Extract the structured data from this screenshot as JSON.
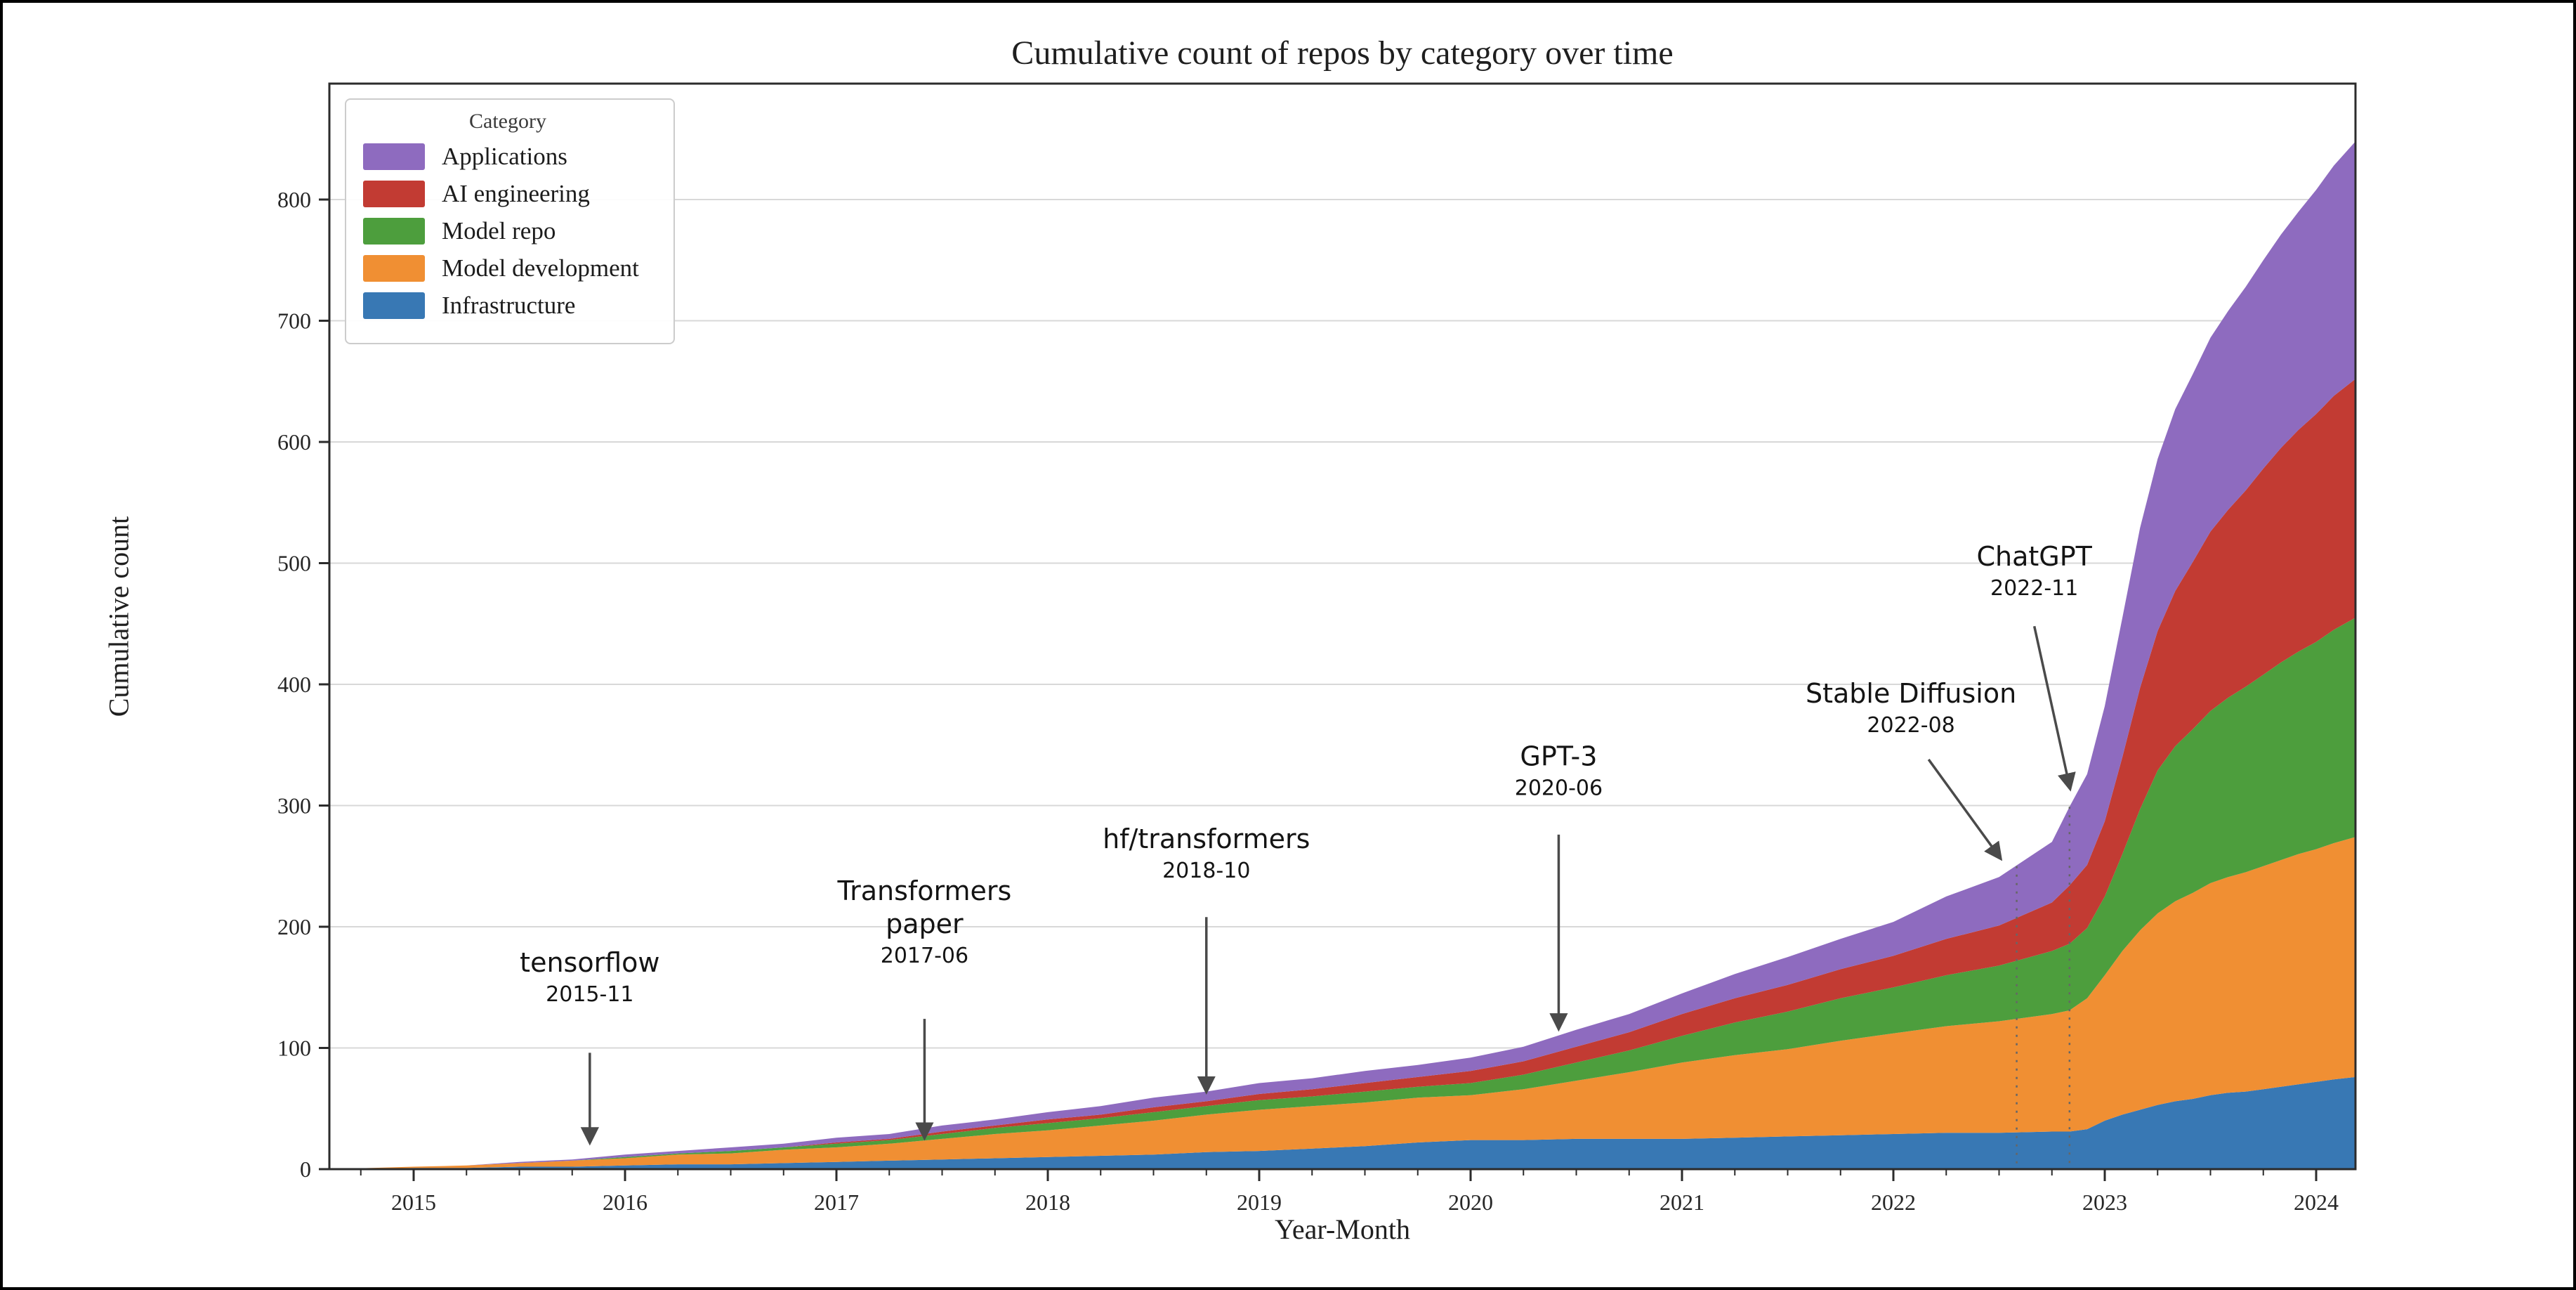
{
  "page": {
    "background": "#ffffff",
    "border_color": "#000000"
  },
  "chart_data": {
    "type": "area",
    "stacked": true,
    "title": "Cumulative count of repos by category over time",
    "xlabel": "Year-Month",
    "ylabel": "Cumulative count",
    "legend_title": "Category",
    "legend_position": "upper left",
    "grid": "horizontal",
    "ylim": [
      0,
      895
    ],
    "yticks": [
      0,
      100,
      200,
      300,
      400,
      500,
      600,
      700,
      800
    ],
    "xticks": [
      2015,
      2016,
      2017,
      2018,
      2019,
      2020,
      2021,
      2022,
      2023,
      2024
    ],
    "x": [
      "2014-08",
      "2015-01",
      "2015-04",
      "2015-07",
      "2015-10",
      "2016-01",
      "2016-04",
      "2016-07",
      "2016-10",
      "2017-01",
      "2017-04",
      "2017-07",
      "2017-10",
      "2018-01",
      "2018-04",
      "2018-07",
      "2018-10",
      "2019-01",
      "2019-04",
      "2019-07",
      "2019-10",
      "2020-01",
      "2020-04",
      "2020-07",
      "2020-10",
      "2021-01",
      "2021-04",
      "2021-07",
      "2021-10",
      "2022-01",
      "2022-04",
      "2022-07",
      "2022-10",
      "2022-11",
      "2022-12",
      "2023-01",
      "2023-02",
      "2023-03",
      "2023-04",
      "2023-05",
      "2023-06",
      "2023-07",
      "2023-08",
      "2023-09",
      "2023-10",
      "2023-11",
      "2023-12",
      "2024-01",
      "2024-02",
      "2024-03"
    ],
    "series": [
      {
        "name": "Infrastructure",
        "color": "#3878b4",
        "values": [
          0,
          1,
          1,
          2,
          2,
          3,
          4,
          4,
          5,
          6,
          7,
          8,
          9,
          10,
          11,
          12,
          14,
          15,
          17,
          19,
          22,
          24,
          24,
          25,
          25,
          25,
          26,
          27,
          28,
          29,
          30,
          30,
          31,
          31,
          33,
          40,
          45,
          49,
          53,
          56,
          58,
          61,
          63,
          64,
          66,
          68,
          70,
          72,
          74,
          76
        ]
      },
      {
        "name": "Model development",
        "color": "#f08f33",
        "values": [
          0,
          1,
          2,
          3,
          5,
          6,
          8,
          9,
          11,
          12,
          14,
          17,
          20,
          22,
          25,
          28,
          31,
          34,
          35,
          36,
          37,
          37,
          42,
          48,
          55,
          63,
          68,
          72,
          78,
          83,
          88,
          92,
          97,
          100,
          108,
          120,
          135,
          148,
          158,
          165,
          170,
          175,
          178,
          181,
          184,
          187,
          190,
          192,
          195,
          198
        ]
      },
      {
        "name": "Model repo",
        "color": "#4d9e3d",
        "values": [
          0,
          0,
          0,
          0,
          0,
          1,
          1,
          2,
          2,
          3,
          3,
          4,
          5,
          6,
          6,
          7,
          7,
          8,
          8,
          9,
          9,
          10,
          12,
          15,
          18,
          22,
          27,
          31,
          35,
          38,
          42,
          46,
          52,
          55,
          58,
          65,
          80,
          100,
          118,
          128,
          135,
          142,
          148,
          153,
          158,
          163,
          167,
          171,
          176,
          181
        ]
      },
      {
        "name": "AI engineering",
        "color": "#c23b33",
        "values": [
          0,
          0,
          0,
          0,
          0,
          0,
          0,
          0,
          0,
          1,
          1,
          2,
          2,
          3,
          3,
          4,
          4,
          5,
          6,
          7,
          8,
          10,
          11,
          13,
          15,
          18,
          20,
          22,
          24,
          26,
          30,
          33,
          40,
          48,
          52,
          62,
          80,
          100,
          115,
          128,
          138,
          148,
          155,
          162,
          170,
          177,
          183,
          188,
          193,
          197
        ]
      },
      {
        "name": "Applications",
        "color": "#8e6bbf",
        "values": [
          0,
          0,
          0,
          1,
          1,
          2,
          2,
          3,
          3,
          4,
          4,
          5,
          5,
          6,
          7,
          8,
          8,
          9,
          9,
          10,
          10,
          11,
          12,
          14,
          15,
          17,
          20,
          23,
          25,
          28,
          35,
          40,
          50,
          65,
          75,
          95,
          115,
          132,
          142,
          150,
          155,
          160,
          164,
          168,
          172,
          176,
          180,
          185,
          190,
          196
        ]
      }
    ],
    "legend_order_top_to_bottom": [
      "Applications",
      "AI engineering",
      "Model repo",
      "Model development",
      "Infrastructure"
    ],
    "annotations": [
      {
        "label": "tensorflow",
        "date": "2015-11",
        "text_x": "2015-11",
        "text_y": 163,
        "arrow": {
          "x1": "2015-11",
          "y1": 96,
          "x2": "2015-11",
          "y2": 24
        }
      },
      {
        "label": "Transformers paper",
        "lines": [
          "Transformers",
          "paper"
        ],
        "date": "2017-06",
        "text_x": "2017-06",
        "text_y": 222,
        "arrow": {
          "x1": "2017-06",
          "y1": 124,
          "x2": "2017-06",
          "y2": 28
        }
      },
      {
        "label": "hf/transformers",
        "date": "2018-10",
        "text_x": "2018-10",
        "text_y": 265,
        "arrow": {
          "x1": "2018-10",
          "y1": 208,
          "x2": "2018-10",
          "y2": 66
        }
      },
      {
        "label": "GPT-3",
        "date": "2020-06",
        "text_x": "2020-06",
        "text_y": 333,
        "arrow": {
          "x1": "2020-06",
          "y1": 276,
          "x2": "2020-06",
          "y2": 118
        }
      },
      {
        "label": "Stable Diffusion",
        "date": "2022-08",
        "text_x": "2022-02",
        "text_y": 385,
        "arrow": {
          "x1": "2022-03",
          "y1": 338,
          "x2": "2022-07",
          "y2": 258
        }
      },
      {
        "label": "ChatGPT",
        "date": "2022-11",
        "text_x": "2022-09",
        "text_y": 498,
        "arrow": {
          "x1": "2022-09",
          "y1": 448,
          "x2": "2022-11",
          "y2": 316
        }
      }
    ],
    "event_lines": [
      {
        "x": "2022-08",
        "y_top": 250
      },
      {
        "x": "2022-11",
        "y_top": 299
      }
    ],
    "colors": {
      "gridline": "#d8d8d8",
      "spine": "#2b2b2b",
      "tick_label": "#262626",
      "annotation_text": "#141414",
      "arrow": "#4a4a4a",
      "event_line": "#666666"
    }
  }
}
